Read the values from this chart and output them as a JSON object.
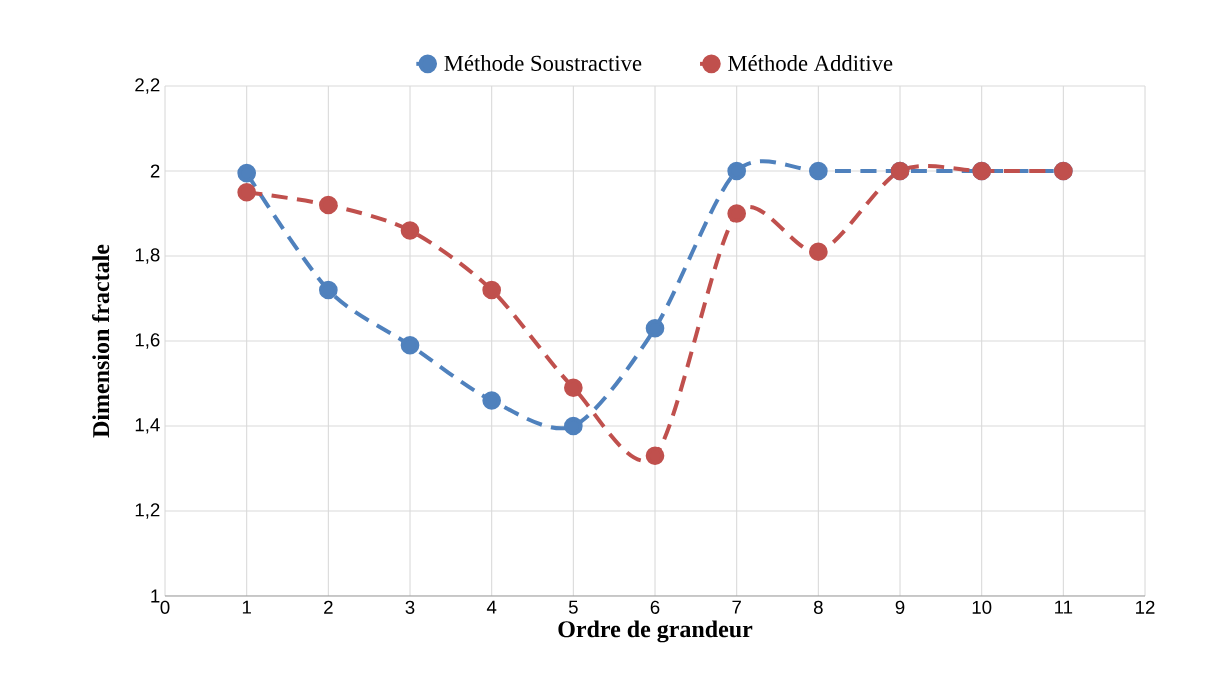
{
  "chart_data": {
    "type": "line",
    "xlabel": "Ordre de grandeur",
    "ylabel": "Dimension fractale",
    "x": [
      1,
      2,
      3,
      4,
      5,
      6,
      7,
      8,
      9,
      10,
      11
    ],
    "series": [
      {
        "name": "Méthode Soustractive",
        "color": "#4f81bd",
        "values": [
          1.995,
          1.72,
          1.59,
          1.46,
          1.4,
          1.63,
          2.0,
          2.0,
          2.0,
          2.0,
          2.0
        ]
      },
      {
        "name": "Méthode Additive",
        "color": "#c0504d",
        "values": [
          1.95,
          1.92,
          1.86,
          1.72,
          1.49,
          1.33,
          1.9,
          1.81,
          2.0,
          2.0,
          2.0
        ]
      }
    ],
    "xlim": [
      0,
      12
    ],
    "xticks": [
      0,
      1,
      2,
      3,
      4,
      5,
      6,
      7,
      8,
      9,
      10,
      11,
      12
    ],
    "ylim": [
      1,
      2.2
    ],
    "yticks": [
      1,
      {
        "value": 1.2,
        "label": "1,2"
      },
      {
        "value": 1.4,
        "label": "1,4"
      },
      {
        "value": 1.6,
        "label": "1,6"
      },
      {
        "value": 1.8,
        "label": "1,8"
      },
      2,
      {
        "value": 2.2,
        "label": "2,2"
      }
    ],
    "grid": true,
    "legend": "top",
    "marker": "circle",
    "line_style": "dashed"
  }
}
